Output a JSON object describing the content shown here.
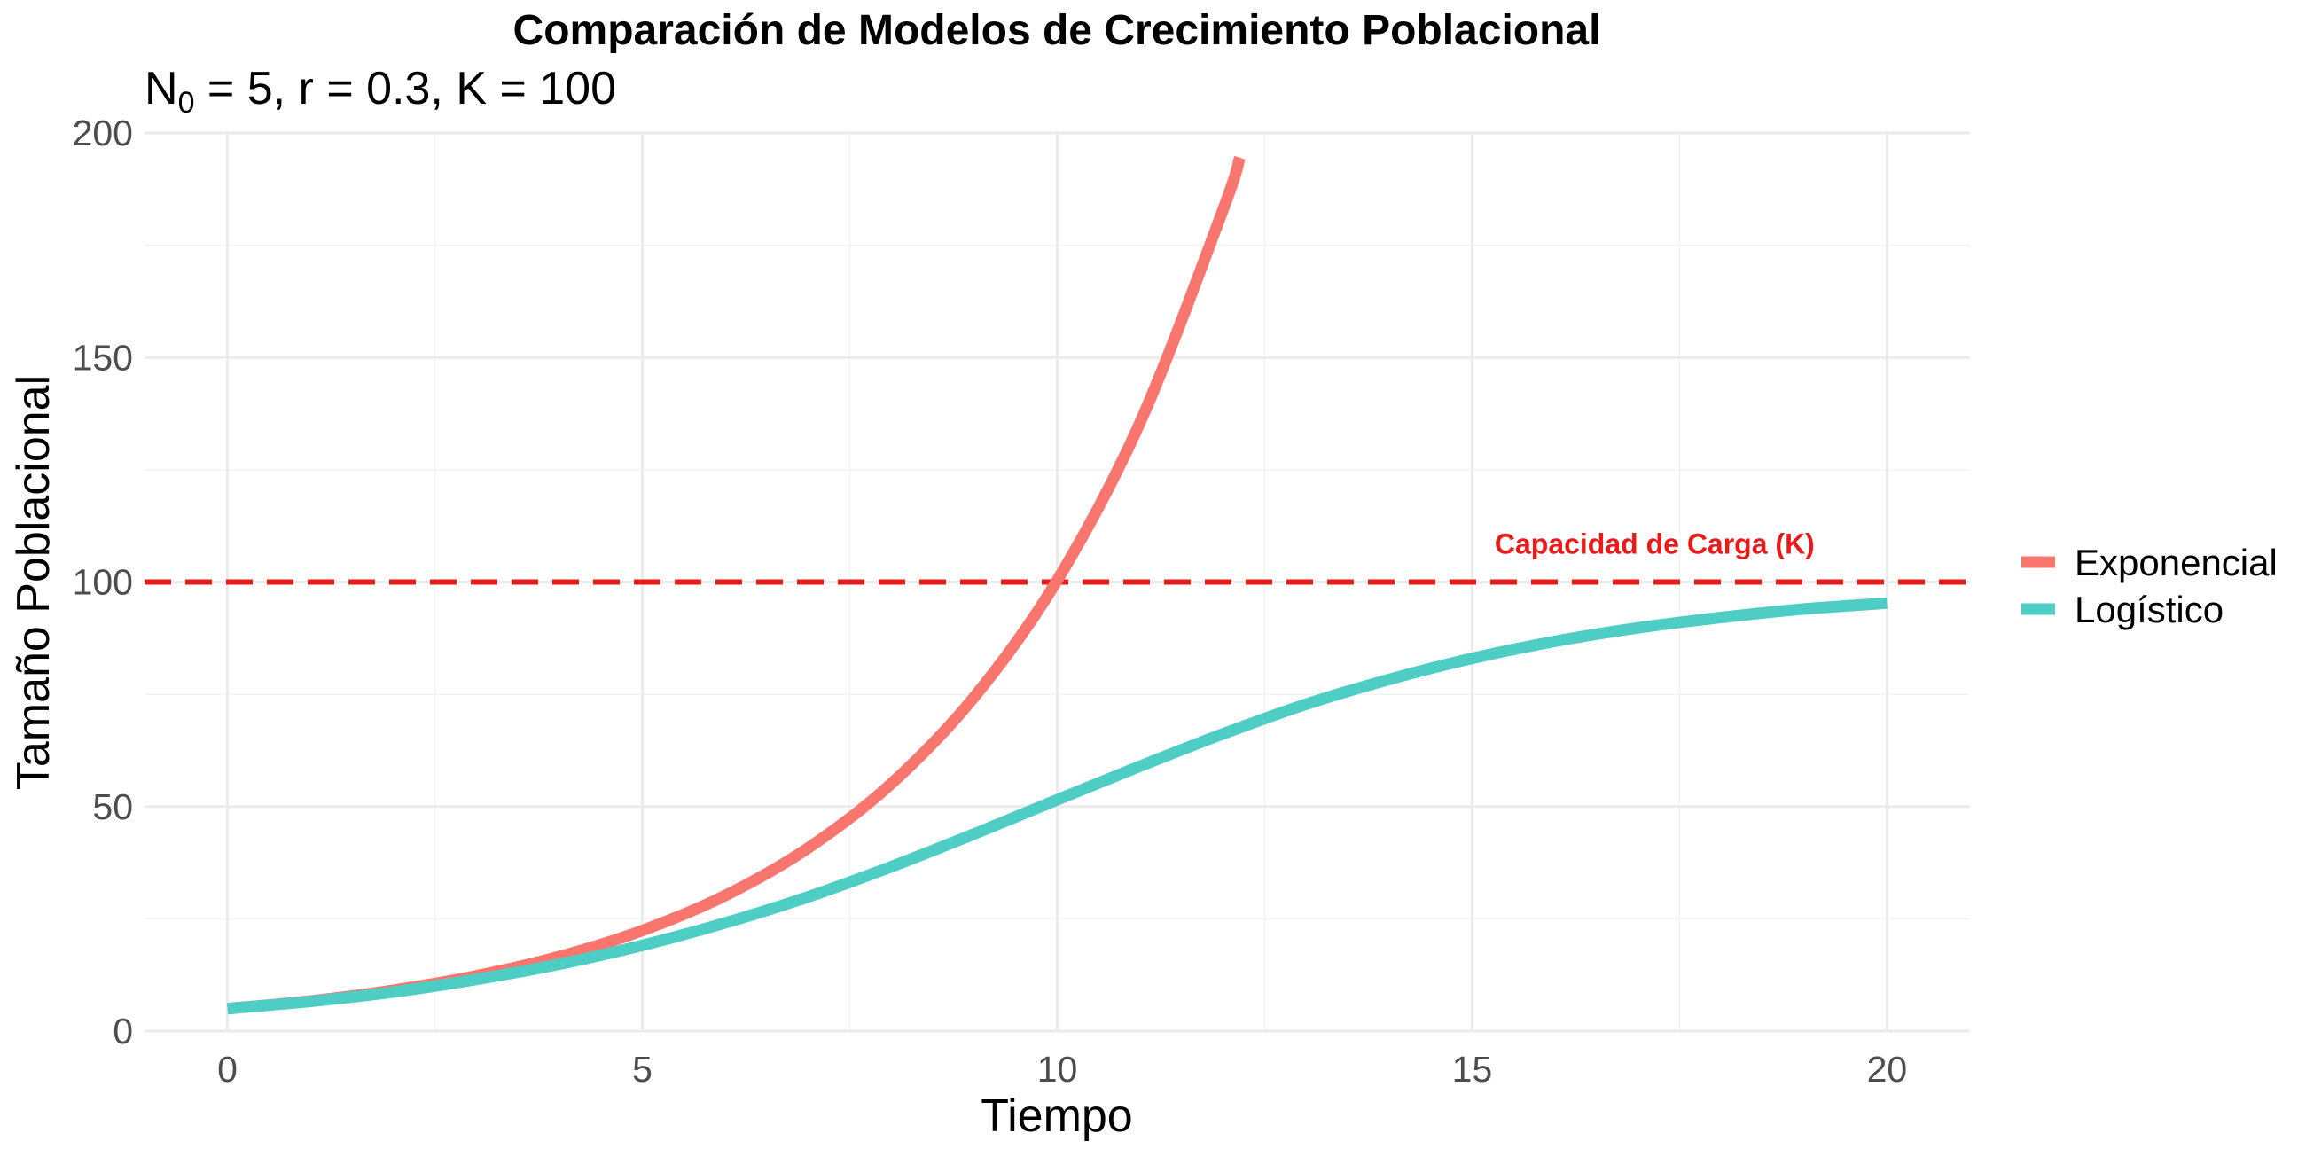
{
  "chart_data": {
    "type": "line",
    "title": "Comparación de Modelos de Crecimiento Poblacional",
    "subtitle_main": "N",
    "subtitle_sub": "0",
    "subtitle_rest": " = 5, r = 0.3, K = 100",
    "xlabel": "Tiempo",
    "ylabel": "Tamaño Poblacional",
    "xlim": [
      -1,
      21
    ],
    "ylim": [
      0,
      200
    ],
    "x_ticks": [
      0,
      5,
      10,
      15,
      20
    ],
    "x_tick_labels": [
      "0",
      "5",
      "10",
      "15",
      "20"
    ],
    "y_ticks": [
      0,
      50,
      100,
      150,
      200
    ],
    "y_tick_labels": [
      "0",
      "50",
      "100",
      "150",
      "200"
    ],
    "grid": true,
    "legend_position": "right",
    "series": [
      {
        "name": "Exponencial",
        "color": "#F8766D",
        "x": [
          0,
          1,
          2,
          3,
          4,
          5,
          6,
          7,
          8,
          9,
          10,
          11,
          12,
          12.2
        ],
        "y": [
          5,
          6.7,
          9.1,
          12.3,
          16.6,
          22.4,
          30.2,
          40.8,
          55.1,
          74.4,
          100.4,
          135.6,
          183.0,
          194.5
        ]
      },
      {
        "name": "Logístico",
        "color": "#4ECDC4",
        "x": [
          0,
          1,
          2,
          3,
          4,
          5,
          6,
          7,
          8,
          9,
          10,
          11,
          12,
          13,
          14,
          15,
          16,
          17,
          18,
          19,
          20
        ],
        "y": [
          5,
          6.6,
          8.7,
          11.5,
          14.9,
          19.1,
          24.1,
          29.9,
          36.6,
          43.9,
          51.5,
          59.0,
          66.2,
          72.8,
          78.3,
          83.0,
          86.8,
          89.8,
          92.1,
          94.0,
          95.3
        ]
      }
    ],
    "reference_line": {
      "y": 100,
      "color": "#E81A1A",
      "style": "dashed",
      "label": "Capacidad de Carga (K)",
      "label_x": 17.2,
      "label_y": 108.5
    }
  }
}
